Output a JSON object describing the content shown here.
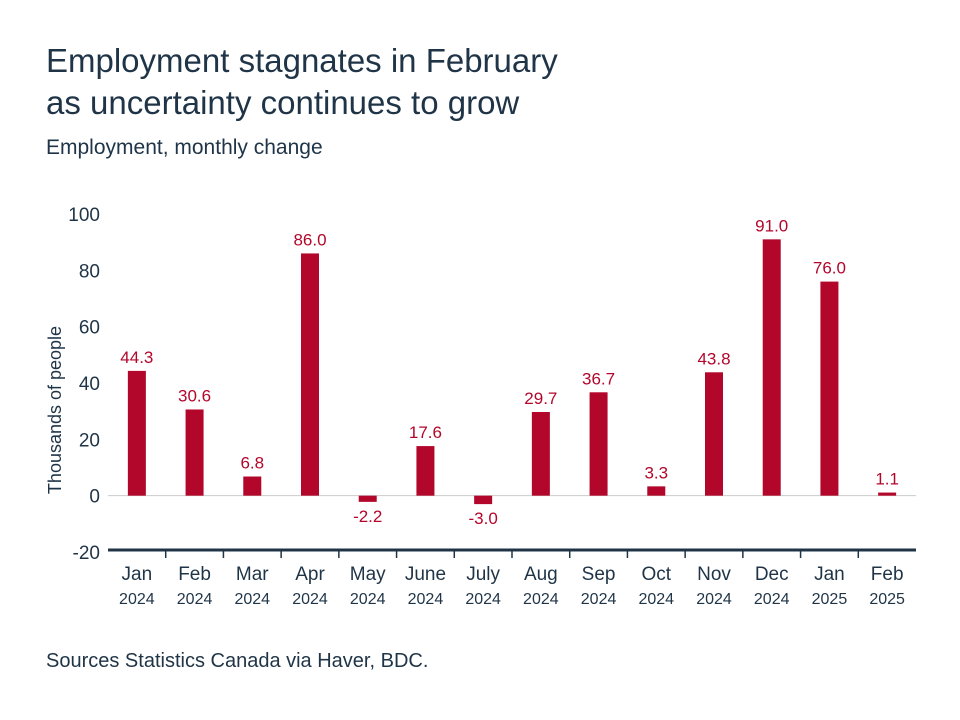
{
  "title_lines": [
    "Employment stagnates in February",
    "as uncertainty continues to grow"
  ],
  "subtitle": "Employment, monthly change",
  "source": "Sources Statistics Canada via Haver, BDC.",
  "colors": {
    "bar": "#b3062b",
    "label": "#b3062b",
    "text": "#1f3447",
    "axis": "#1f3447",
    "zero_line": "#cccccc"
  },
  "chart_data": {
    "type": "bar",
    "ylabel": "Thousands of people",
    "ylim": [
      -20,
      100
    ],
    "yticks": [
      100,
      80,
      60,
      40,
      20,
      0,
      -20
    ],
    "grid": false,
    "categories": [
      "Jan 2024",
      "Feb 2024",
      "Mar 2024",
      "Apr 2024",
      "May 2024",
      "June 2024",
      "July 2024",
      "Aug 2024",
      "Sep 2024",
      "Oct 2024",
      "Nov 2024",
      "Dec 2024",
      "Jan 2025",
      "Feb 2025"
    ],
    "category_months": [
      "Jan",
      "Feb",
      "Mar",
      "Apr",
      "May",
      "June",
      "July",
      "Aug",
      "Sep",
      "Oct",
      "Nov",
      "Dec",
      "Jan",
      "Feb"
    ],
    "category_years": [
      "2024",
      "2024",
      "2024",
      "2024",
      "2024",
      "2024",
      "2024",
      "2024",
      "2024",
      "2024",
      "2024",
      "2024",
      "2025",
      "2025"
    ],
    "values": [
      44.3,
      30.6,
      6.8,
      86.0,
      -2.2,
      17.6,
      -3.0,
      29.7,
      36.7,
      3.3,
      43.8,
      91.0,
      76.0,
      1.1
    ],
    "data_labels": [
      "44.3",
      "30.6",
      "6.8",
      "86.0",
      "-2.2",
      "17.6",
      "-3.0",
      "29.7",
      "36.7",
      "3.3",
      "43.8",
      "91.0",
      "76.0",
      "1.1"
    ]
  }
}
